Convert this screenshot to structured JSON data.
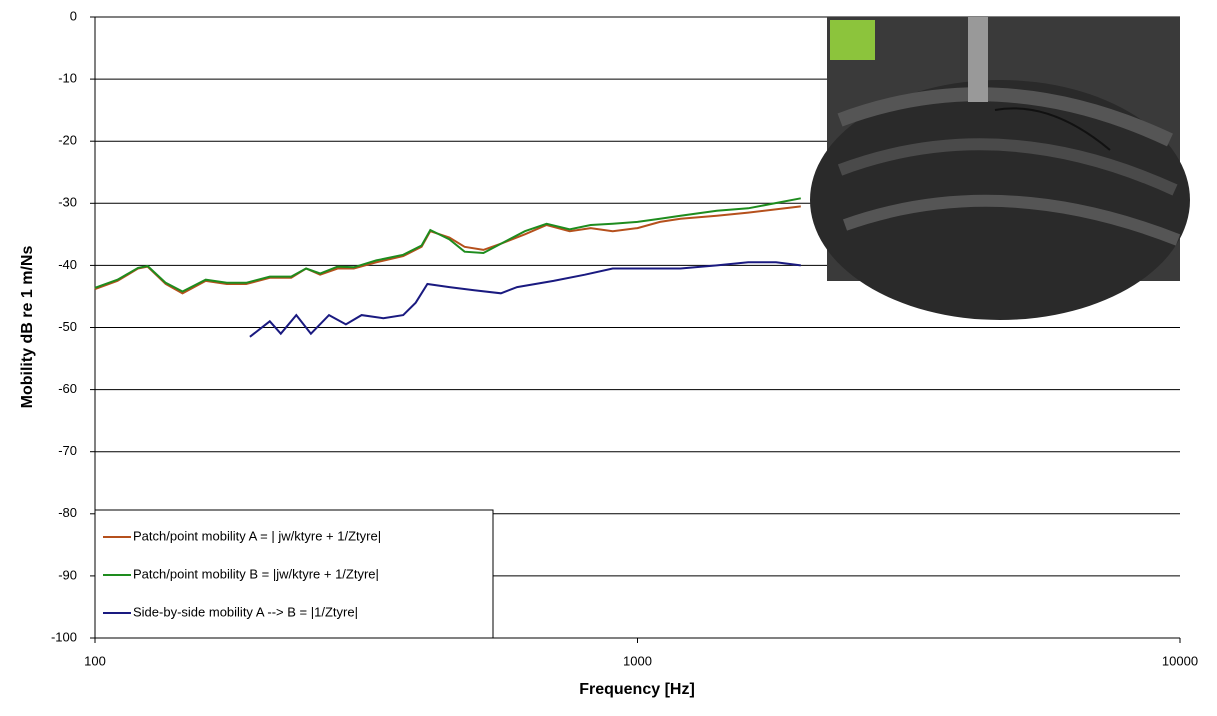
{
  "chart_data": {
    "type": "line",
    "x_label": "Frequency [Hz]",
    "y_label": "Mobility dB re 1 m/Ns",
    "xscale": "log",
    "xlim": [
      100,
      10000
    ],
    "xticks": [
      100,
      1000,
      10000
    ],
    "ylim": [
      -100,
      0
    ],
    "yticks": [
      0,
      -10,
      -20,
      -30,
      -40,
      -50,
      -60,
      -70,
      -80,
      -90,
      -100
    ],
    "grid": true,
    "legend": "lower left",
    "series": [
      {
        "name": "Patch/point mobility A = | jw/ktyre + 1/Ztyre|",
        "color": "#b5501c",
        "x": [
          100,
          110,
          120,
          125,
          135,
          145,
          160,
          175,
          190,
          210,
          230,
          245,
          260,
          280,
          300,
          330,
          370,
          400,
          415,
          450,
          480,
          520,
          560,
          620,
          680,
          750,
          820,
          900,
          1000,
          1100,
          1200,
          1400,
          1600,
          2000
        ],
        "values": [
          -43.8,
          -42.5,
          -40.5,
          -40.2,
          -43,
          -44.5,
          -42.5,
          -43,
          -43,
          -42,
          -42,
          -40.5,
          -41.5,
          -40.5,
          -40.5,
          -39.5,
          -38.5,
          -37,
          -34.5,
          -35.5,
          -37,
          -37.5,
          -36.5,
          -35,
          -33.5,
          -34.5,
          -34,
          -34.5,
          -34,
          -33,
          -32.5,
          -32,
          -31.5,
          -30.5
        ]
      },
      {
        "name": "Patch/point mobility B = |jw/ktyre + 1/Ztyre|",
        "color": "#1e8c1e",
        "x": [
          100,
          110,
          120,
          125,
          135,
          145,
          160,
          175,
          190,
          210,
          230,
          245,
          260,
          280,
          300,
          330,
          370,
          400,
          415,
          450,
          480,
          520,
          560,
          620,
          680,
          750,
          820,
          900,
          1000,
          1100,
          1200,
          1400,
          1600,
          2000
        ],
        "values": [
          -43.6,
          -42.3,
          -40.4,
          -40.1,
          -42.8,
          -44.2,
          -42.3,
          -42.8,
          -42.8,
          -41.8,
          -41.8,
          -40.5,
          -41.3,
          -40.2,
          -40.3,
          -39.2,
          -38.3,
          -36.8,
          -34.3,
          -35.8,
          -37.8,
          -38,
          -36.5,
          -34.5,
          -33.3,
          -34.2,
          -33.5,
          -33.3,
          -33,
          -32.5,
          -32,
          -31.2,
          -30.8,
          -29.2
        ]
      },
      {
        "name": "Side-by-side mobility A --> B = |1/Ztyre|",
        "color": "#1a1a80",
        "x": [
          193,
          210,
          220,
          235,
          250,
          270,
          290,
          310,
          340,
          370,
          390,
          410,
          450,
          500,
          560,
          600,
          700,
          800,
          900,
          1000,
          1200,
          1400,
          1600,
          1800,
          2000
        ],
        "values": [
          -51.5,
          -49,
          -51,
          -48,
          -51,
          -48,
          -49.5,
          -48,
          -48.5,
          -48,
          -46,
          -43,
          -43.5,
          -44,
          -44.5,
          -43.5,
          -42.5,
          -41.5,
          -40.5,
          -40.5,
          -40.5,
          -40,
          -39.5,
          -39.5,
          -40
        ]
      }
    ]
  }
}
